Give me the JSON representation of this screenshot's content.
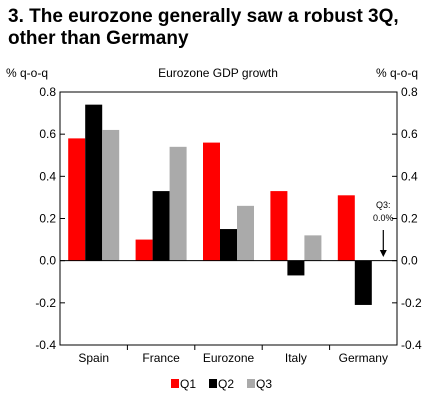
{
  "heading": "3. The eurozone generally saw a robust 3Q, other than Germany",
  "chart_data": {
    "type": "bar",
    "title": "Eurozone GDP growth",
    "ylabel_left": "% q-o-q",
    "ylabel_right": "% q-o-q",
    "categories": [
      "Spain",
      "France",
      "Eurozone",
      "Italy",
      "Germany"
    ],
    "series": [
      {
        "name": "Q1",
        "color": "#ff0000",
        "values": [
          0.58,
          0.1,
          0.56,
          0.33,
          0.31
        ]
      },
      {
        "name": "Q2",
        "color": "#000000",
        "values": [
          0.74,
          0.33,
          0.15,
          -0.07,
          -0.21
        ]
      },
      {
        "name": "Q3",
        "color": "#aaaaaa",
        "values": [
          0.62,
          0.54,
          0.26,
          0.12,
          null
        ]
      }
    ],
    "ylim": [
      -0.4,
      0.8
    ],
    "yticks": [
      "-0.4",
      "-0.2",
      "0.0",
      "0.2",
      "0.4",
      "0.6",
      "0.8"
    ],
    "grid": false,
    "legend": "bottom",
    "annotation": {
      "category": "Germany",
      "line1": "Q3:",
      "line2": "0.0%"
    }
  }
}
